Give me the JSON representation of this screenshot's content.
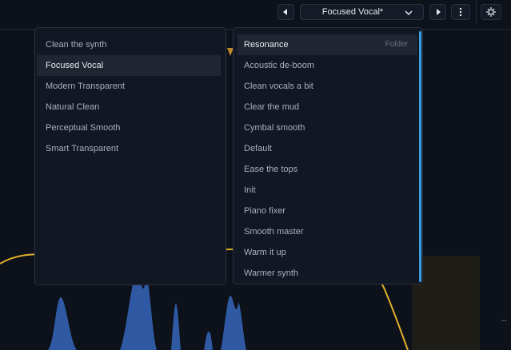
{
  "header": {
    "preset_name": "Focused Vocal*"
  },
  "left_list": {
    "items": [
      "Clean the synth",
      "Focused Vocal",
      "Modern Transparent",
      "Natural Clean",
      "Perceptual Smooth",
      "Smart Transparent"
    ]
  },
  "right_list": {
    "folder_label": "Folder",
    "items": [
      "Resonance",
      "Acoustic de-boom",
      "Clean vocals a bit",
      "Clear the mud",
      "Cymbal smooth",
      "Default",
      "Ease the tops",
      "Init",
      "Piano fixer",
      "Smooth master",
      "Warm it up",
      "Warmer synth"
    ]
  }
}
